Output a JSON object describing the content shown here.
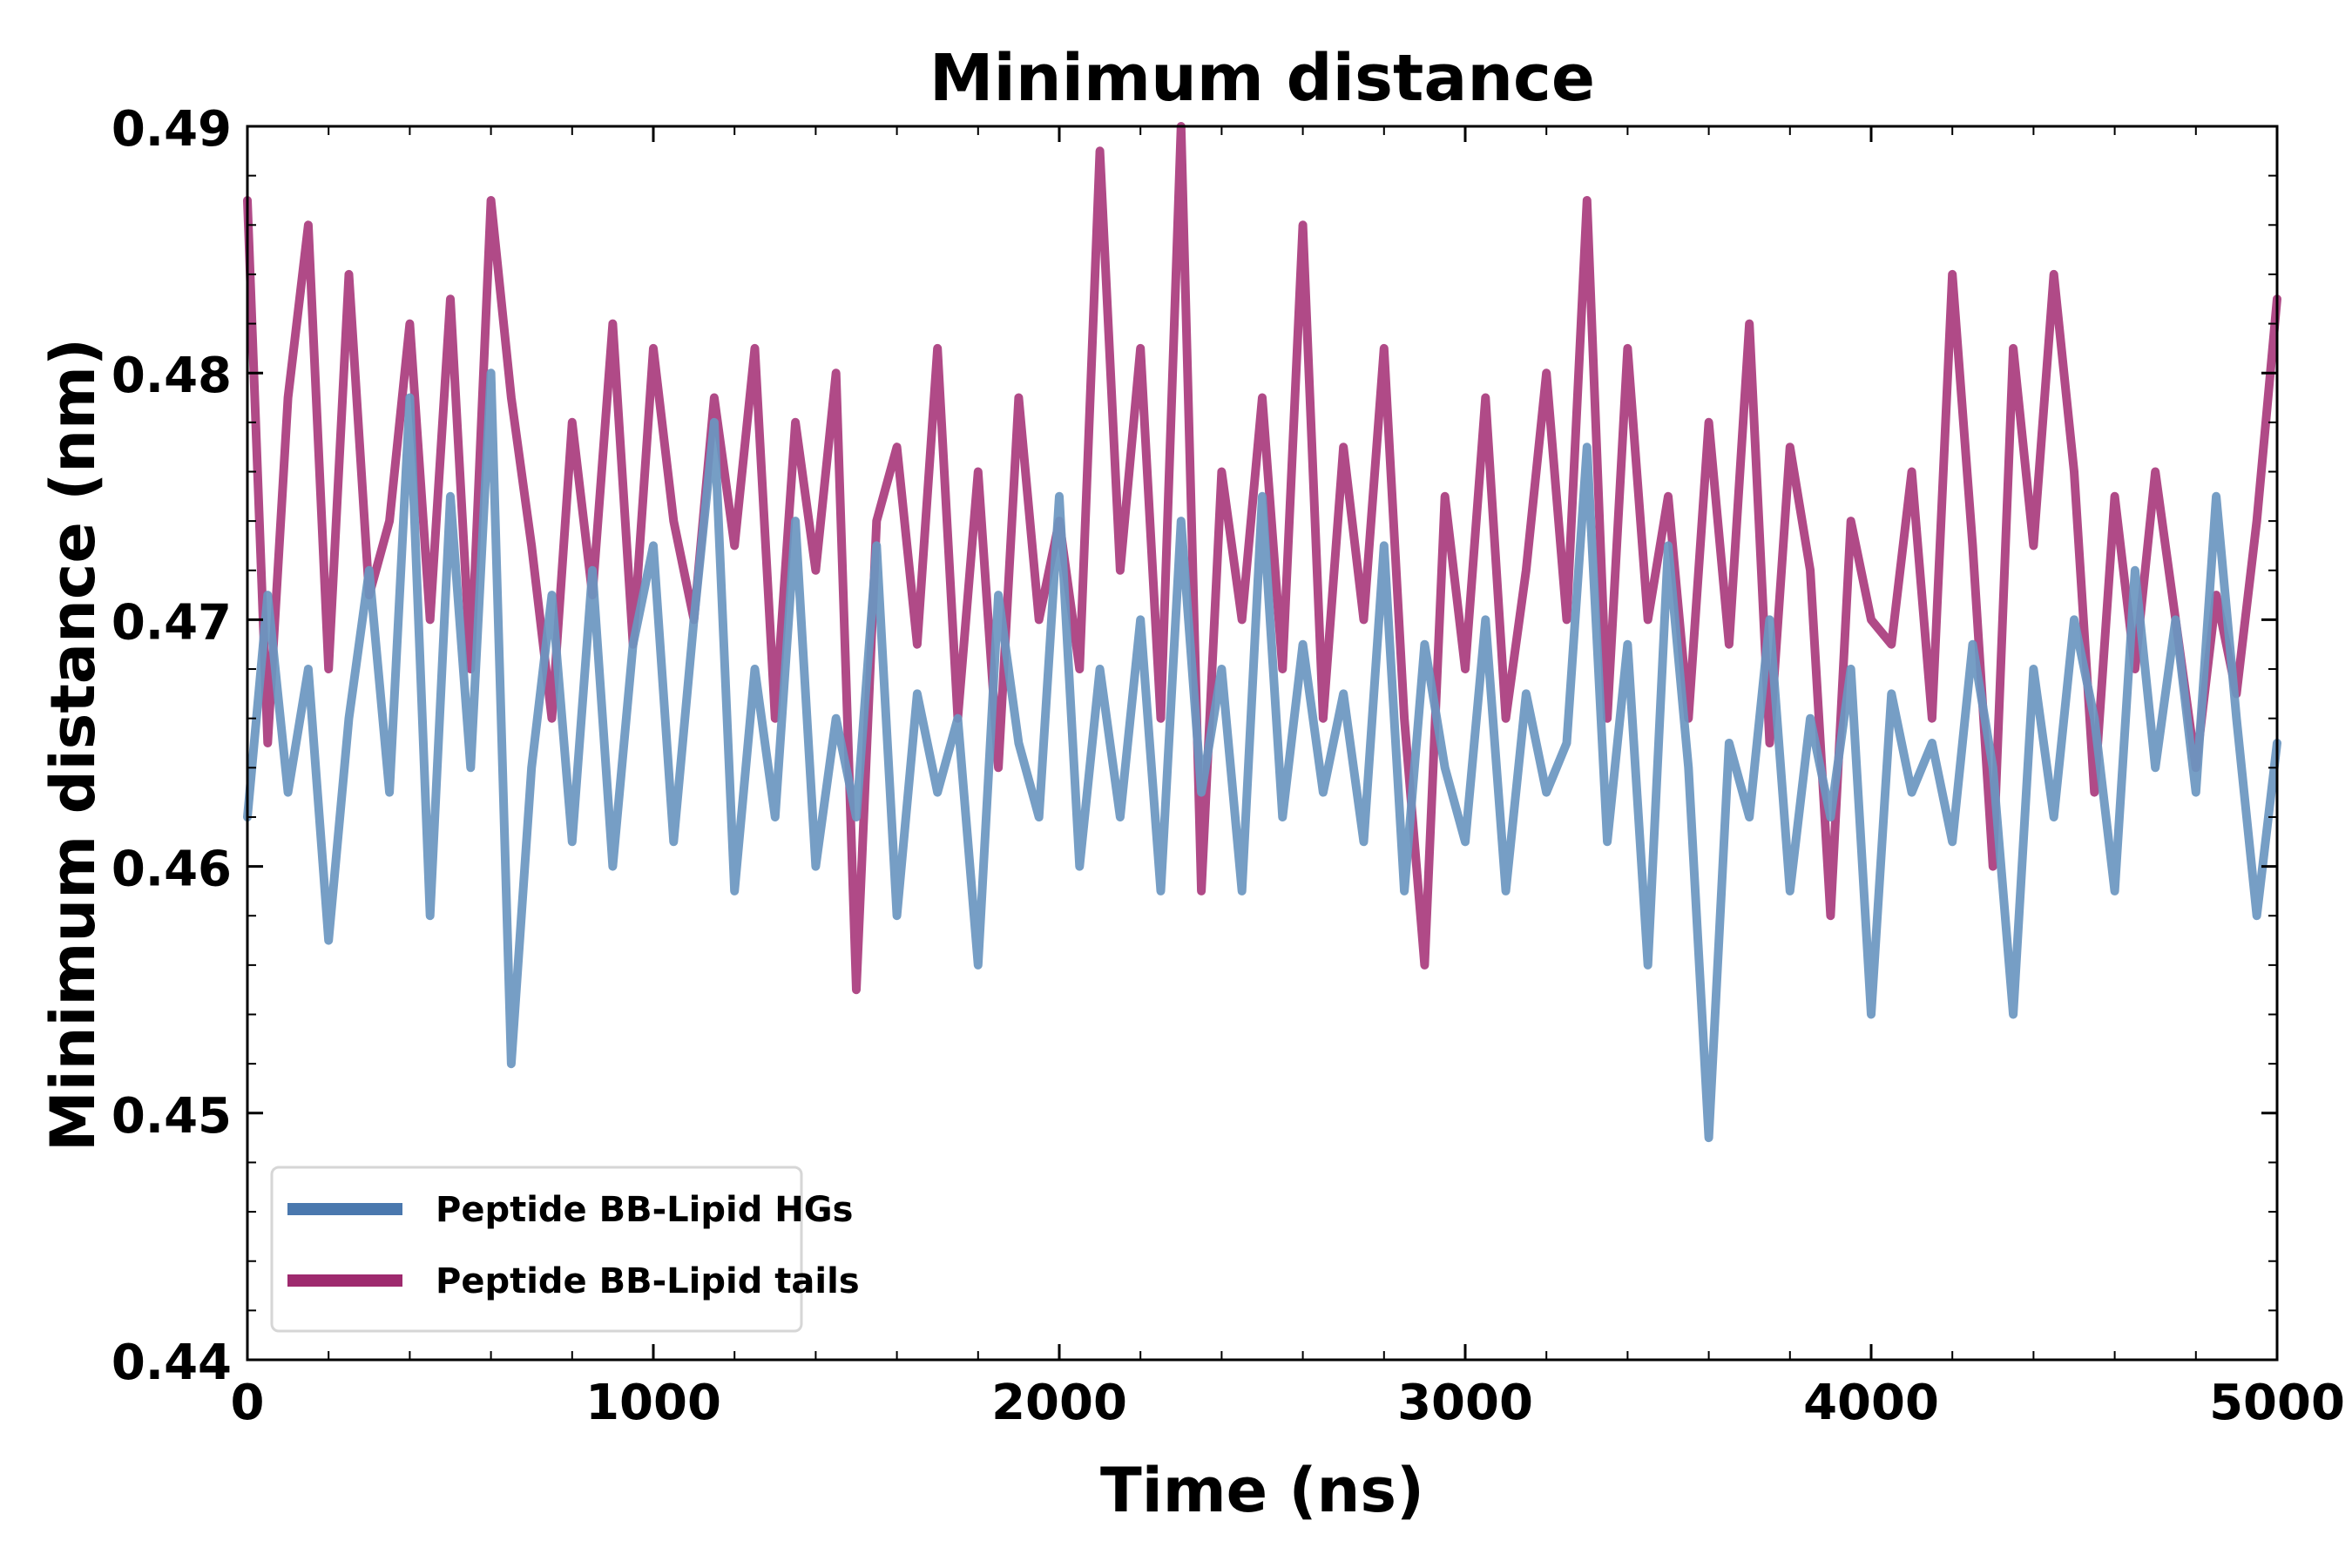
{
  "chart_data": {
    "type": "line",
    "title": "Minimum distance",
    "xlabel": "Time (ns)",
    "ylabel": "Minimum distance (nm)",
    "xlim": [
      0,
      5000
    ],
    "ylim": [
      0.44,
      0.49
    ],
    "xticks": [
      0,
      1000,
      2000,
      3000,
      4000,
      5000
    ],
    "xtick_labels": [
      "0",
      "1000",
      "2000",
      "3000",
      "4000",
      "5000"
    ],
    "yticks": [
      0.44,
      0.45,
      0.46,
      0.47,
      0.48,
      0.49
    ],
    "ytick_labels": [
      "0.44",
      "0.45",
      "0.46",
      "0.47",
      "0.48",
      "0.49"
    ],
    "grid": false,
    "legend": "bottom-left",
    "series": [
      {
        "name": "Peptide BB-Lipid tails",
        "color": "#b04a87",
        "legend_color": "#9e2a6e",
        "x": [
          0,
          50,
          100,
          150,
          200,
          250,
          300,
          350,
          400,
          450,
          500,
          550,
          600,
          650,
          700,
          750,
          800,
          850,
          900,
          950,
          1000,
          1050,
          1100,
          1150,
          1200,
          1250,
          1300,
          1350,
          1400,
          1450,
          1500,
          1550,
          1600,
          1650,
          1700,
          1750,
          1800,
          1850,
          1900,
          1950,
          2000,
          2050,
          2100,
          2150,
          2200,
          2250,
          2300,
          2350,
          2400,
          2450,
          2500,
          2550,
          2600,
          2650,
          2700,
          2750,
          2800,
          2850,
          2900,
          2950,
          3000,
          3050,
          3100,
          3150,
          3200,
          3250,
          3300,
          3350,
          3400,
          3450,
          3500,
          3550,
          3600,
          3650,
          3700,
          3750,
          3800,
          3850,
          3900,
          3950,
          4000,
          4050,
          4100,
          4150,
          4200,
          4250,
          4300,
          4350,
          4400,
          4450,
          4500,
          4550,
          4600,
          4650,
          4700,
          4750,
          4800,
          4850,
          4900,
          4950,
          5000
        ],
        "values": [
          0.487,
          0.465,
          0.479,
          0.486,
          0.468,
          0.484,
          0.471,
          0.474,
          0.482,
          0.47,
          0.483,
          0.468,
          0.487,
          0.479,
          0.473,
          0.466,
          0.478,
          0.471,
          0.482,
          0.469,
          0.481,
          0.474,
          0.47,
          0.479,
          0.473,
          0.481,
          0.466,
          0.478,
          0.472,
          0.48,
          0.455,
          0.474,
          0.477,
          0.469,
          0.481,
          0.466,
          0.476,
          0.464,
          0.479,
          0.47,
          0.474,
          0.468,
          0.489,
          0.472,
          0.481,
          0.466,
          0.49,
          0.459,
          0.476,
          0.47,
          0.479,
          0.468,
          0.486,
          0.466,
          0.477,
          0.47,
          0.481,
          0.466,
          0.456,
          0.475,
          0.468,
          0.479,
          0.466,
          0.472,
          0.48,
          0.47,
          0.487,
          0.466,
          0.481,
          0.47,
          0.475,
          0.466,
          0.478,
          0.469,
          0.482,
          0.465,
          0.477,
          0.472,
          0.458,
          0.474,
          0.47,
          0.469,
          0.476,
          0.466,
          0.484,
          0.473,
          0.46,
          0.481,
          0.473,
          0.484,
          0.476,
          0.463,
          0.475,
          0.468,
          0.476,
          0.47,
          0.464,
          0.471,
          0.467,
          0.474,
          0.483
        ]
      },
      {
        "name": "Peptide BB-Lipid HGs",
        "color": "#6a96c0",
        "legend_color": "#4a78ae",
        "x": [
          0,
          50,
          100,
          150,
          200,
          250,
          300,
          350,
          400,
          450,
          500,
          550,
          600,
          650,
          700,
          750,
          800,
          850,
          900,
          950,
          1000,
          1050,
          1100,
          1150,
          1200,
          1250,
          1300,
          1350,
          1400,
          1450,
          1500,
          1550,
          1600,
          1650,
          1700,
          1750,
          1800,
          1850,
          1900,
          1950,
          2000,
          2050,
          2100,
          2150,
          2200,
          2250,
          2300,
          2350,
          2400,
          2450,
          2500,
          2550,
          2600,
          2650,
          2700,
          2750,
          2800,
          2850,
          2900,
          2950,
          3000,
          3050,
          3100,
          3150,
          3200,
          3250,
          3300,
          3350,
          3400,
          3450,
          3500,
          3550,
          3600,
          3650,
          3700,
          3750,
          3800,
          3850,
          3900,
          3950,
          4000,
          4050,
          4100,
          4150,
          4200,
          4250,
          4300,
          4350,
          4400,
          4450,
          4500,
          4550,
          4600,
          4650,
          4700,
          4750,
          4800,
          4850,
          4900,
          4950,
          5000
        ],
        "values": [
          0.462,
          0.471,
          0.463,
          0.468,
          0.457,
          0.466,
          0.472,
          0.463,
          0.479,
          0.458,
          0.475,
          0.464,
          0.48,
          0.452,
          0.464,
          0.471,
          0.461,
          0.472,
          0.46,
          0.469,
          0.473,
          0.461,
          0.47,
          0.478,
          0.459,
          0.468,
          0.462,
          0.474,
          0.46,
          0.466,
          0.462,
          0.473,
          0.458,
          0.467,
          0.463,
          0.466,
          0.456,
          0.471,
          0.465,
          0.462,
          0.475,
          0.46,
          0.468,
          0.462,
          0.47,
          0.459,
          0.474,
          0.463,
          0.468,
          0.459,
          0.475,
          0.462,
          0.469,
          0.463,
          0.467,
          0.461,
          0.473,
          0.459,
          0.469,
          0.464,
          0.461,
          0.47,
          0.459,
          0.467,
          0.463,
          0.465,
          0.477,
          0.461,
          0.469,
          0.456,
          0.473,
          0.464,
          0.449,
          0.465,
          0.462,
          0.47,
          0.459,
          0.466,
          0.462,
          0.468,
          0.454,
          0.467,
          0.463,
          0.465,
          0.461,
          0.469,
          0.464,
          0.454,
          0.468,
          0.462,
          0.47,
          0.466,
          0.459,
          0.472,
          0.464,
          0.47,
          0.463,
          0.475,
          0.466,
          0.458,
          0.465
        ]
      }
    ]
  }
}
